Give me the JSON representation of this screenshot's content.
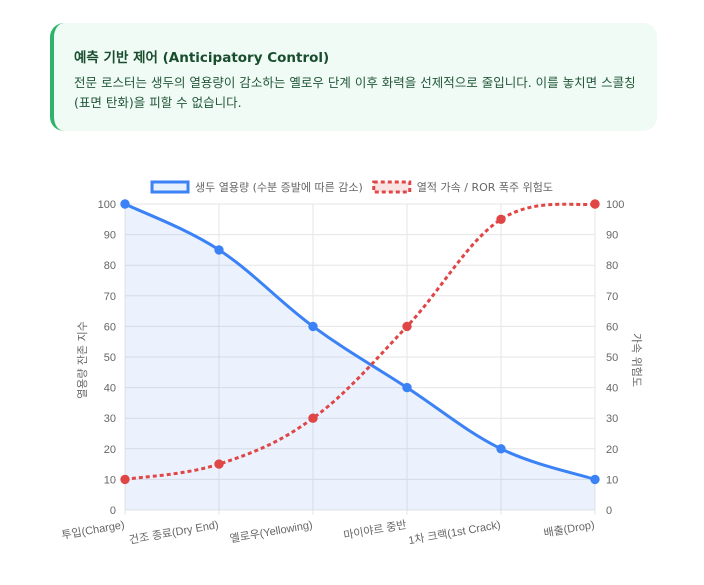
{
  "callout": {
    "title": "예측 기반 제어 (Anticipatory Control)",
    "body": "전문 로스터는 생두의 열용량이 감소하는 옐로우 단계 이후 화력을 선제적으로 줄입니다. 이를 놓치면 스콜칭(표면 탄화)을 피할 수 없습니다.",
    "accent_color": "#2fb36a",
    "background_color": "#effbf4"
  },
  "chart_data": {
    "type": "line",
    "categories": [
      "투입(Charge)",
      "건조 종료(Dry End)",
      "옐로우(Yellowing)",
      "마이야르 중반",
      "1차 크랙(1st Crack)",
      "배출(Drop)"
    ],
    "series": [
      {
        "name": "생두 열용량 (수분 증발에 따른 감소)",
        "values": [
          100,
          85,
          60,
          40,
          20,
          10
        ],
        "color": "#3b82f6",
        "fill": true,
        "dashed": false,
        "axis": "left"
      },
      {
        "name": "열적 가속 / ROR 폭주 위험도",
        "values": [
          10,
          15,
          30,
          60,
          95,
          100
        ],
        "color": "#e04646",
        "fill": false,
        "dashed": true,
        "axis": "right"
      }
    ],
    "ylabel": "열용량 잔존 지수",
    "y2label": "가속 위험도",
    "ylim": [
      0,
      100
    ],
    "y2lim": [
      0,
      100
    ],
    "yticks": [
      "0",
      "10",
      "20",
      "30",
      "40",
      "50",
      "60",
      "70",
      "80",
      "90",
      "100"
    ],
    "grid": true,
    "legend_position": "top"
  }
}
